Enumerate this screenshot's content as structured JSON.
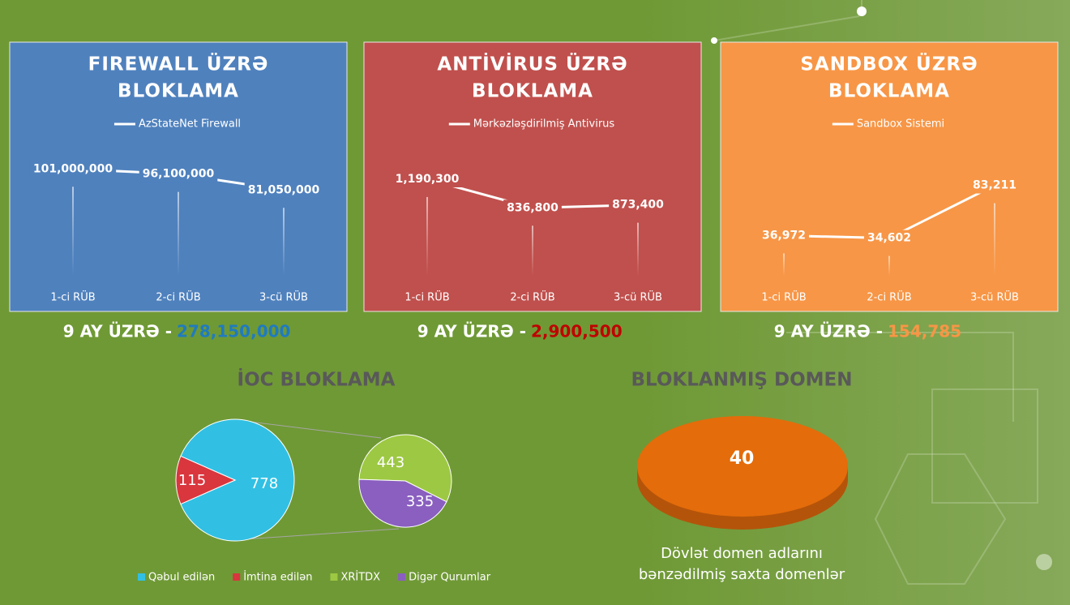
{
  "chart_data": [
    {
      "type": "line",
      "title": [
        "FIREWALL ÜZRƏ",
        "BLOKLAMA"
      ],
      "background": "#4f81bd",
      "categories": [
        "1-ci RÜB",
        "2-ci RÜB",
        "3-cü RÜB"
      ],
      "series": [
        {
          "name": "AzStateNet Firewall",
          "color": "#ffffff",
          "values": [
            101000000,
            96100000,
            81050000
          ],
          "value_labels": [
            "101,000,000",
            "96,100,000",
            "81,050,000"
          ]
        }
      ],
      "ylim": [
        0,
        115000000
      ],
      "total_label": "9 AY ÜZRƏ -",
      "total": 278150000,
      "total_value_label": "278,150,000",
      "total_color": "#1f7bbf"
    },
    {
      "type": "line",
      "title": [
        "ANTİVİRUS ÜZRƏ",
        "BLOKLAMA"
      ],
      "background": "#c0504d",
      "categories": [
        "1-ci RÜB",
        "2-ci RÜB",
        "3-cü RÜB"
      ],
      "series": [
        {
          "name": "Mərkəzləşdirilmiş Antivirus",
          "color": "#ffffff",
          "values": [
            1190300,
            836800,
            873400
          ],
          "value_labels": [
            "1,190,300",
            "836,800",
            "873,400"
          ]
        }
      ],
      "ylim": [
        0,
        1500000
      ],
      "total_label": "9 AY ÜZRƏ -",
      "total": 2900500,
      "total_value_label": "2,900,500",
      "total_color": "#c00000"
    },
    {
      "type": "line",
      "title": [
        "SANDBOX ÜZRƏ",
        "BLOKLAMA"
      ],
      "background": "#f79646",
      "categories": [
        "1-ci RÜB",
        "2-ci RÜB",
        "3-cü RÜB"
      ],
      "series": [
        {
          "name": "Sandbox Sistemi",
          "color": "#ffffff",
          "values": [
            36972,
            34602,
            83211
          ],
          "value_labels": [
            "36,972",
            "34,602",
            "83,211"
          ]
        }
      ],
      "ylim": [
        0,
        112000
      ],
      "total_label": "9 AY ÜZRƏ -",
      "total": 154785,
      "total_value_label": "154,785",
      "total_color": "#f79646"
    },
    {
      "type": "pie-of-pie",
      "title": "İOC  BLOKLAMA",
      "categories": [
        "Qəbul edilən",
        "İmtina edilən"
      ],
      "values": [
        778,
        115
      ],
      "colors": [
        "#31c0e3",
        "#d9363e"
      ],
      "secondary": {
        "categories": [
          "XRİTDX",
          "Digər Qurumlar"
        ],
        "values": [
          443,
          335
        ],
        "colors": [
          "#9dc843",
          "#8a5fc0"
        ]
      }
    },
    {
      "type": "pie3d",
      "title": "BLOKLANMIŞ DOMEN",
      "values": [
        40
      ],
      "color": "#e46c0a",
      "annotation": [
        "Dövlət domen adlarını",
        "bənzədilmiş saxta domenlər"
      ]
    }
  ]
}
